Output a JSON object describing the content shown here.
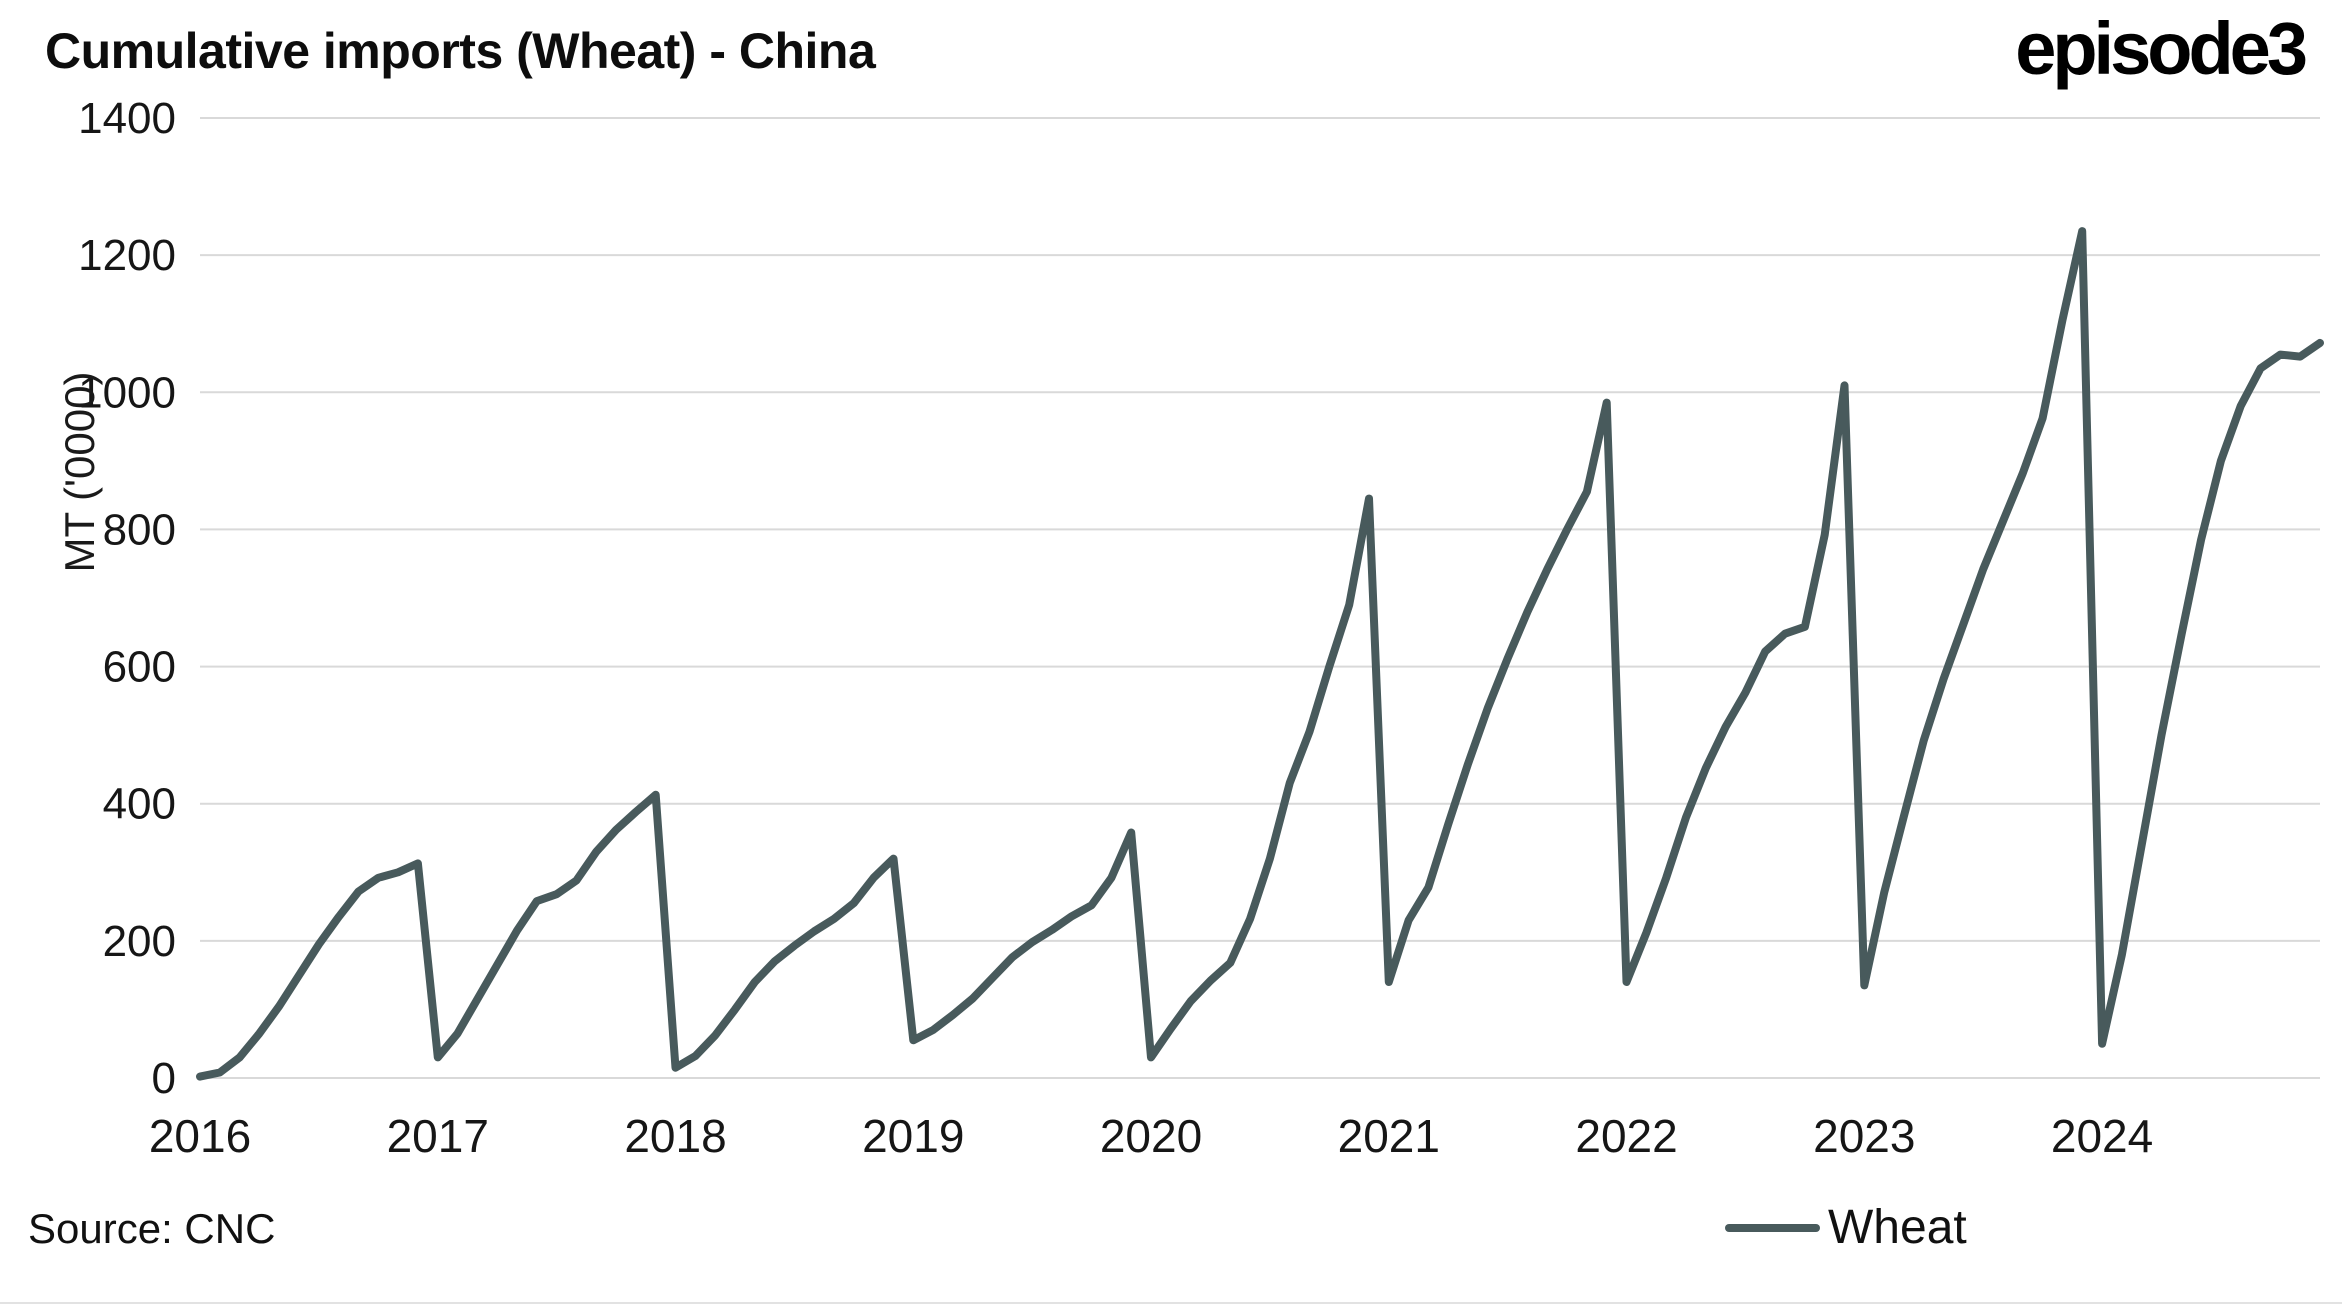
{
  "header": {
    "title": "Cumulative imports (Wheat) - China",
    "logo": "episode3"
  },
  "footer": {
    "source": "Source: CNC"
  },
  "legend": {
    "items": [
      {
        "label": "Wheat",
        "color": "#485a5c"
      }
    ]
  },
  "chart_data": {
    "type": "line",
    "title": "Cumulative imports (Wheat) - China",
    "xlabel": "",
    "ylabel": "MT ('0000)",
    "ylim": [
      0,
      1400
    ],
    "y_ticks": [
      0,
      200,
      400,
      600,
      800,
      1000,
      1200,
      1400
    ],
    "x_tick_labels": [
      "2016",
      "2017",
      "2018",
      "2019",
      "2020",
      "2021",
      "2022",
      "2023",
      "2024"
    ],
    "x_start_year": 2016,
    "points_per_year": 12,
    "grid": "horizontal",
    "gridline_color": "#d9d9d9",
    "legend_position": "bottom-right",
    "series": [
      {
        "name": "Wheat",
        "color": "#485a5c",
        "note": "Monthly cumulative imports, resetting to near zero each January; 108 monthly values Jan 2016 - Dec 2024",
        "values": [
          2,
          8,
          30,
          65,
          105,
          150,
          195,
          235,
          272,
          292,
          300,
          313,
          30,
          65,
          115,
          165,
          215,
          258,
          268,
          288,
          330,
          362,
          388,
          413,
          15,
          32,
          62,
          100,
          140,
          170,
          193,
          214,
          232,
          255,
          292,
          320,
          55,
          70,
          92,
          116,
          146,
          176,
          198,
          216,
          236,
          252,
          292,
          358,
          30,
          72,
          112,
          142,
          168,
          232,
          320,
          430,
          505,
          600,
          690,
          845,
          140,
          230,
          278,
          370,
          458,
          540,
          612,
          680,
          742,
          800,
          855,
          985,
          140,
          212,
          292,
          380,
          452,
          512,
          562,
          622,
          648,
          658,
          792,
          1010,
          135,
          270,
          382,
          492,
          582,
          662,
          742,
          812,
          882,
          962,
          1105,
          1235,
          50,
          180,
          340,
          500,
          645,
          785,
          900,
          980,
          1035,
          1055,
          1052,
          1072
        ]
      }
    ]
  }
}
